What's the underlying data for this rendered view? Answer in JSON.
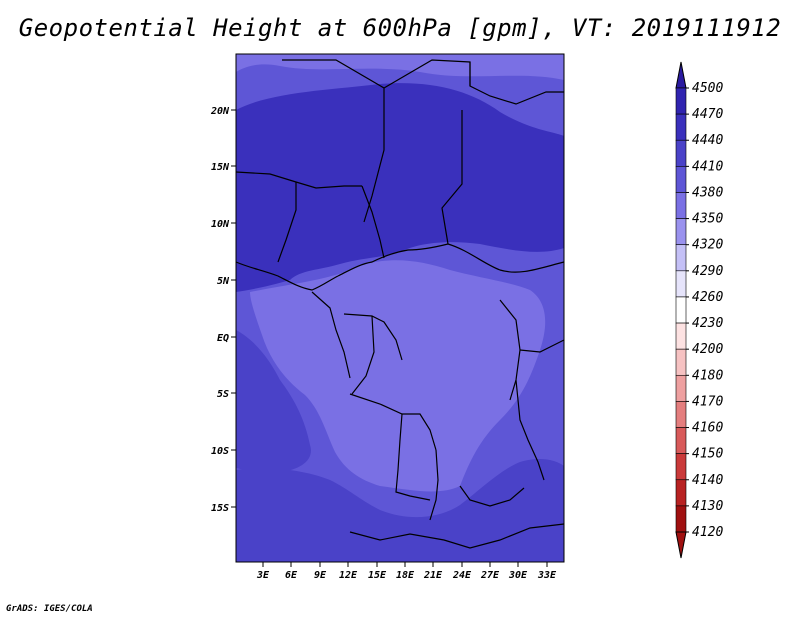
{
  "title": "Geopotential Height at 600hPa [gpm], VT: 2019111912",
  "footer": "GrADS: IGES/COLA",
  "map": {
    "lat_axis": [
      "20N",
      "15N",
      "10N",
      "5N",
      "EQ",
      "5S",
      "10S",
      "15S"
    ],
    "lon_axis": [
      "3E",
      "6E",
      "9E",
      "12E",
      "15E",
      "18E",
      "21E",
      "24E",
      "27E",
      "30E",
      "33E"
    ]
  },
  "colorbar": {
    "levels": [
      "4500",
      "4470",
      "4440",
      "4410",
      "4380",
      "4350",
      "4320",
      "4290",
      "4260",
      "4230",
      "4200",
      "4180",
      "4170",
      "4160",
      "4150",
      "4140",
      "4130",
      "4120"
    ],
    "colors": [
      "#2a1aa0",
      "#3024b0",
      "#3a30bc",
      "#4a42c8",
      "#5e56d6",
      "#7a70e4",
      "#9a92ee",
      "#c4c0f6",
      "#e6e4fb",
      "#ffffff",
      "#fde2e2",
      "#f6c2c2",
      "#eea0a0",
      "#e47e7e",
      "#d85a5a",
      "#ca3a3a",
      "#b82222",
      "#a01010"
    ]
  }
}
